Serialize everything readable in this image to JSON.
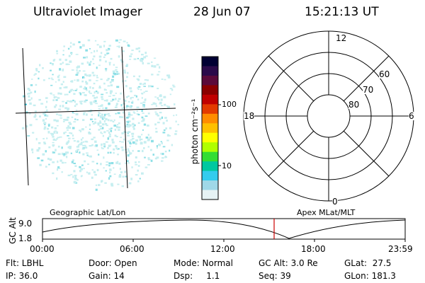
{
  "header": {
    "instrument": "Ultraviolet Imager",
    "date": "28 Jun 07",
    "time": "15:21:13 UT"
  },
  "colorbar": {
    "unit_label": "photon cm⁻²s⁻¹",
    "ticks": [
      "100",
      "10"
    ],
    "scale": "log",
    "colors": [
      "#000033",
      "#2a0a4a",
      "#5a0a3a",
      "#8a0000",
      "#c00000",
      "#e33a00",
      "#ff8c00",
      "#ffc000",
      "#ffff00",
      "#b0ff00",
      "#33dd33",
      "#00c8a0",
      "#33ccee",
      "#9fd8e8",
      "#e6f3f5"
    ]
  },
  "polar_plot": {
    "mlt_labels": {
      "top": "12",
      "right": "6",
      "bottom": "0",
      "left": "18"
    },
    "lat_labels": [
      "60",
      "70",
      "80"
    ]
  },
  "timeline": {
    "y_axis_label": "GC Alt",
    "y_ticks": [
      "9.0",
      "1.8"
    ],
    "left_caption": "Geographic Lat/Lon",
    "right_caption": "Apex MLat/MLT",
    "x_ticks": [
      "00:00",
      "06:00",
      "12:00",
      "18:00",
      "23:59"
    ],
    "current_time_marker_color": "#cc0000"
  },
  "status": {
    "flt": "Flt: LBHL",
    "door": "Door: Open",
    "mode": "Mode: Normal",
    "gc_alt": "GC Alt: 3.0 Re",
    "glat": "GLat:  27.5",
    "ip": "IP: 36.0",
    "gain": "Gain: 14",
    "dsp": "Dsp:     1.1",
    "seq": "Seq: 39",
    "glon": "GLon: 181.3"
  },
  "colors": {
    "speckle_light": "#c6eef0",
    "speckle_mid": "#8ddfe6",
    "speckle_bright": "#3cc8dc"
  }
}
